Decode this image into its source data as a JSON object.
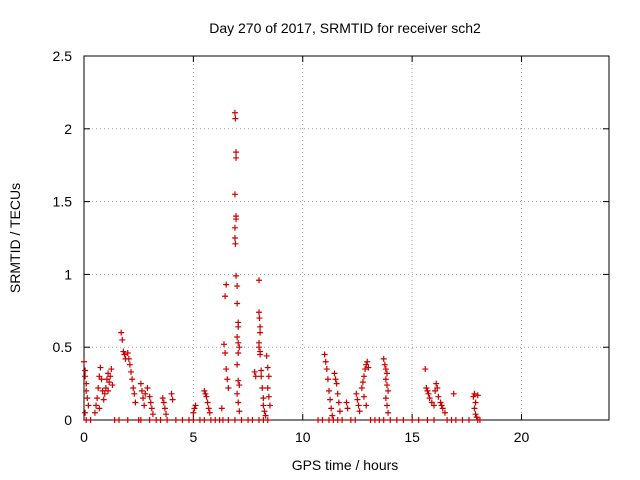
{
  "chart_data": {
    "type": "scatter",
    "title": "Day 270 of 2017, SRMTID for receiver sch2",
    "xlabel": "GPS time / hours",
    "ylabel": "SRMTID / TECUs",
    "xlim": [
      0,
      24
    ],
    "ylim": [
      0,
      2.5
    ],
    "xticks": [
      0,
      5,
      10,
      15,
      20
    ],
    "xtick_labels": [
      "0",
      "5",
      "10",
      "15",
      "20"
    ],
    "yticks": [
      0,
      0.5,
      1,
      1.5,
      2,
      2.5
    ],
    "ytick_labels": [
      "0",
      "0.5",
      "1",
      "1.5",
      "2",
      "2.5"
    ],
    "grid": true,
    "marker": "+",
    "series": [
      {
        "name": "SRMTID",
        "color": "#cc0000",
        "points": [
          [
            0.0,
            0.4
          ],
          [
            0.05,
            0.34
          ],
          [
            0.05,
            0.3
          ],
          [
            0.1,
            0.25
          ],
          [
            0.1,
            0.2
          ],
          [
            0.15,
            0.15
          ],
          [
            0.2,
            0.1
          ],
          [
            0.05,
            0.05
          ],
          [
            0.1,
            0.0
          ],
          [
            0.3,
            0.0
          ],
          [
            0.5,
            0.05
          ],
          [
            0.55,
            0.1
          ],
          [
            0.6,
            0.15
          ],
          [
            0.65,
            0.22
          ],
          [
            0.7,
            0.3
          ],
          [
            0.75,
            0.36
          ],
          [
            0.8,
            0.28
          ],
          [
            0.85,
            0.2
          ],
          [
            0.9,
            0.14
          ],
          [
            0.7,
            0.08
          ],
          [
            1.0,
            0.22
          ],
          [
            1.05,
            0.28
          ],
          [
            1.1,
            0.32
          ],
          [
            1.15,
            0.26
          ],
          [
            1.2,
            0.3
          ],
          [
            1.25,
            0.35
          ],
          [
            1.3,
            0.24
          ],
          [
            0.95,
            0.18
          ],
          [
            1.1,
            0.2
          ],
          [
            1.4,
            0.0
          ],
          [
            1.7,
            0.6
          ],
          [
            1.75,
            0.55
          ],
          [
            1.8,
            0.47
          ],
          [
            1.85,
            0.45
          ],
          [
            1.9,
            0.42
          ],
          [
            2.0,
            0.46
          ],
          [
            2.05,
            0.42
          ],
          [
            2.1,
            0.38
          ],
          [
            2.15,
            0.33
          ],
          [
            2.2,
            0.28
          ],
          [
            2.25,
            0.22
          ],
          [
            2.3,
            0.18
          ],
          [
            2.35,
            0.12
          ],
          [
            1.6,
            0.0
          ],
          [
            2.0,
            0.0
          ],
          [
            2.5,
            0.0
          ],
          [
            2.6,
            0.25
          ],
          [
            2.65,
            0.2
          ],
          [
            2.7,
            0.15
          ],
          [
            2.75,
            0.1
          ],
          [
            2.8,
            0.18
          ],
          [
            2.9,
            0.22
          ],
          [
            3.0,
            0.16
          ],
          [
            3.05,
            0.12
          ],
          [
            3.1,
            0.08
          ],
          [
            3.15,
            0.04
          ],
          [
            2.6,
            0.0
          ],
          [
            3.0,
            0.0
          ],
          [
            3.3,
            0.0
          ],
          [
            3.5,
            0.0
          ],
          [
            3.6,
            0.15
          ],
          [
            3.65,
            0.12
          ],
          [
            3.7,
            0.08
          ],
          [
            3.75,
            0.04
          ],
          [
            4.0,
            0.18
          ],
          [
            4.05,
            0.14
          ],
          [
            3.8,
            0.0
          ],
          [
            4.2,
            0.0
          ],
          [
            4.5,
            0.0
          ],
          [
            4.8,
            0.0
          ],
          [
            5.0,
            0.05
          ],
          [
            5.05,
            0.08
          ],
          [
            5.1,
            0.1
          ],
          [
            5.0,
            0.0
          ],
          [
            5.3,
            0.0
          ],
          [
            5.5,
            0.2
          ],
          [
            5.55,
            0.18
          ],
          [
            5.6,
            0.16
          ],
          [
            5.65,
            0.12
          ],
          [
            5.7,
            0.08
          ],
          [
            5.75,
            0.05
          ],
          [
            5.5,
            0.0
          ],
          [
            5.8,
            0.0
          ],
          [
            6.0,
            0.0
          ],
          [
            6.2,
            0.0
          ],
          [
            6.3,
            0.08
          ],
          [
            6.4,
            0.52
          ],
          [
            6.45,
            0.46
          ],
          [
            6.5,
            0.35
          ],
          [
            6.55,
            0.28
          ],
          [
            6.6,
            0.22
          ],
          [
            6.45,
            0.85
          ],
          [
            6.5,
            0.93
          ],
          [
            6.6,
            0.0
          ],
          [
            6.35,
            0.0
          ],
          [
            6.9,
            2.11
          ],
          [
            6.92,
            2.07
          ],
          [
            6.95,
            1.84
          ],
          [
            6.95,
            1.8
          ],
          [
            6.9,
            1.55
          ],
          [
            6.95,
            1.4
          ],
          [
            6.95,
            1.38
          ],
          [
            6.9,
            1.32
          ],
          [
            6.9,
            1.25
          ],
          [
            6.92,
            1.21
          ],
          [
            6.95,
            0.99
          ],
          [
            7.0,
            0.92
          ],
          [
            7.0,
            0.8
          ],
          [
            7.05,
            0.67
          ],
          [
            7.05,
            0.64
          ],
          [
            7.0,
            0.57
          ],
          [
            7.05,
            0.53
          ],
          [
            7.1,
            0.5
          ],
          [
            7.05,
            0.46
          ],
          [
            7.0,
            0.38
          ],
          [
            7.05,
            0.27
          ],
          [
            7.1,
            0.24
          ],
          [
            7.0,
            0.18
          ],
          [
            7.05,
            0.12
          ],
          [
            7.1,
            0.06
          ],
          [
            6.9,
            0.0
          ],
          [
            7.2,
            0.0
          ],
          [
            7.5,
            0.0
          ],
          [
            7.7,
            0.0
          ],
          [
            7.8,
            0.33
          ],
          [
            7.85,
            0.3
          ],
          [
            8.0,
            0.96
          ],
          [
            8.0,
            0.74
          ],
          [
            8.02,
            0.7
          ],
          [
            8.05,
            0.64
          ],
          [
            8.05,
            0.6
          ],
          [
            8.0,
            0.53
          ],
          [
            8.0,
            0.5
          ],
          [
            8.05,
            0.47
          ],
          [
            8.05,
            0.45
          ],
          [
            8.1,
            0.34
          ],
          [
            8.1,
            0.3
          ],
          [
            8.15,
            0.22
          ],
          [
            8.2,
            0.15
          ],
          [
            8.2,
            0.1
          ],
          [
            8.25,
            0.06
          ],
          [
            8.3,
            0.03
          ],
          [
            8.0,
            0.0
          ],
          [
            8.2,
            0.0
          ],
          [
            8.35,
            0.44
          ],
          [
            8.4,
            0.36
          ],
          [
            8.45,
            0.3
          ],
          [
            8.4,
            0.22
          ],
          [
            8.45,
            0.16
          ],
          [
            8.5,
            0.1
          ],
          [
            8.4,
            0.0
          ],
          [
            10.7,
            0.0
          ],
          [
            10.9,
            0.0
          ],
          [
            11.0,
            0.45
          ],
          [
            11.05,
            0.4
          ],
          [
            11.1,
            0.35
          ],
          [
            11.15,
            0.28
          ],
          [
            11.2,
            0.2
          ],
          [
            11.25,
            0.14
          ],
          [
            11.3,
            0.08
          ],
          [
            11.35,
            0.03
          ],
          [
            11.2,
            0.0
          ],
          [
            11.4,
            0.0
          ],
          [
            11.45,
            0.32
          ],
          [
            11.5,
            0.28
          ],
          [
            11.55,
            0.25
          ],
          [
            11.6,
            0.18
          ],
          [
            11.65,
            0.12
          ],
          [
            11.7,
            0.06
          ],
          [
            11.6,
            0.0
          ],
          [
            11.8,
            0.0
          ],
          [
            12.0,
            0.12
          ],
          [
            12.05,
            0.08
          ],
          [
            12.2,
            0.0
          ],
          [
            12.4,
            0.0
          ],
          [
            12.45,
            0.18
          ],
          [
            12.5,
            0.14
          ],
          [
            12.55,
            0.1
          ],
          [
            12.6,
            0.06
          ],
          [
            12.7,
            0.22
          ],
          [
            12.75,
            0.26
          ],
          [
            12.8,
            0.3
          ],
          [
            12.85,
            0.35
          ],
          [
            12.9,
            0.38
          ],
          [
            12.95,
            0.4
          ],
          [
            13.0,
            0.36
          ],
          [
            12.8,
            0.16
          ],
          [
            12.9,
            0.1
          ],
          [
            13.1,
            0.0
          ],
          [
            13.3,
            0.0
          ],
          [
            13.5,
            0.0
          ],
          [
            13.7,
            0.42
          ],
          [
            13.75,
            0.38
          ],
          [
            13.8,
            0.35
          ],
          [
            13.85,
            0.32
          ],
          [
            13.8,
            0.28
          ],
          [
            13.85,
            0.24
          ],
          [
            13.9,
            0.2
          ],
          [
            13.8,
            0.15
          ],
          [
            13.85,
            0.1
          ],
          [
            13.9,
            0.05
          ],
          [
            13.7,
            0.0
          ],
          [
            14.0,
            0.0
          ],
          [
            14.3,
            0.0
          ],
          [
            14.6,
            0.0
          ],
          [
            15.0,
            0.0
          ],
          [
            15.3,
            0.0
          ],
          [
            15.6,
            0.35
          ],
          [
            15.65,
            0.22
          ],
          [
            15.7,
            0.2
          ],
          [
            15.75,
            0.18
          ],
          [
            15.8,
            0.15
          ],
          [
            15.9,
            0.12
          ],
          [
            16.0,
            0.1
          ],
          [
            16.05,
            0.2
          ],
          [
            16.1,
            0.25
          ],
          [
            16.15,
            0.22
          ],
          [
            16.2,
            0.16
          ],
          [
            15.7,
            0.0
          ],
          [
            16.0,
            0.0
          ],
          [
            16.3,
            0.12
          ],
          [
            16.35,
            0.1
          ],
          [
            16.4,
            0.08
          ],
          [
            16.5,
            0.05
          ],
          [
            16.6,
            0.0
          ],
          [
            16.8,
            0.0
          ],
          [
            16.9,
            0.18
          ],
          [
            17.0,
            0.0
          ],
          [
            17.3,
            0.0
          ],
          [
            17.6,
            0.0
          ],
          [
            17.8,
            0.16
          ],
          [
            17.85,
            0.18
          ],
          [
            17.9,
            0.12
          ],
          [
            17.85,
            0.08
          ],
          [
            17.9,
            0.04
          ],
          [
            17.95,
            0.02
          ],
          [
            18.0,
            0.17
          ],
          [
            18.0,
            0.0
          ],
          [
            18.1,
            0.0
          ]
        ]
      }
    ]
  }
}
